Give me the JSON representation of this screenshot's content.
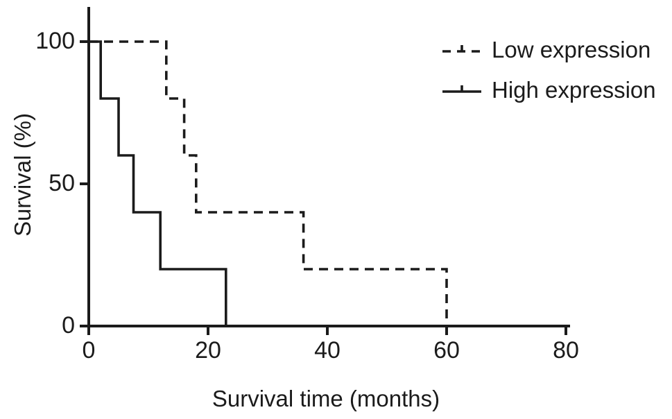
{
  "chart_data": {
    "type": "line",
    "subtype": "kaplan-meier-step",
    "title": "",
    "xlabel": "Survival time (months)",
    "ylabel": "Survival (%)",
    "xlim": [
      0,
      80
    ],
    "ylim": [
      0,
      100
    ],
    "xticks": [
      0,
      20,
      40,
      60,
      80
    ],
    "yticks": [
      0,
      50,
      100
    ],
    "grid": false,
    "legend_position": "top-right",
    "axis_color": "#1b1b1b",
    "series": [
      {
        "name": "Low expression",
        "line_style": "dashed",
        "color": "#1b1b1b",
        "points": [
          [
            0,
            100
          ],
          [
            13,
            80
          ],
          [
            16,
            60
          ],
          [
            18,
            40
          ],
          [
            36,
            20
          ],
          [
            60,
            0
          ]
        ]
      },
      {
        "name": "High expression",
        "line_style": "solid",
        "color": "#1b1b1b",
        "points": [
          [
            0,
            100
          ],
          [
            2,
            80
          ],
          [
            5,
            60
          ],
          [
            7.5,
            40
          ],
          [
            12,
            20
          ],
          [
            23,
            0
          ]
        ]
      }
    ]
  }
}
